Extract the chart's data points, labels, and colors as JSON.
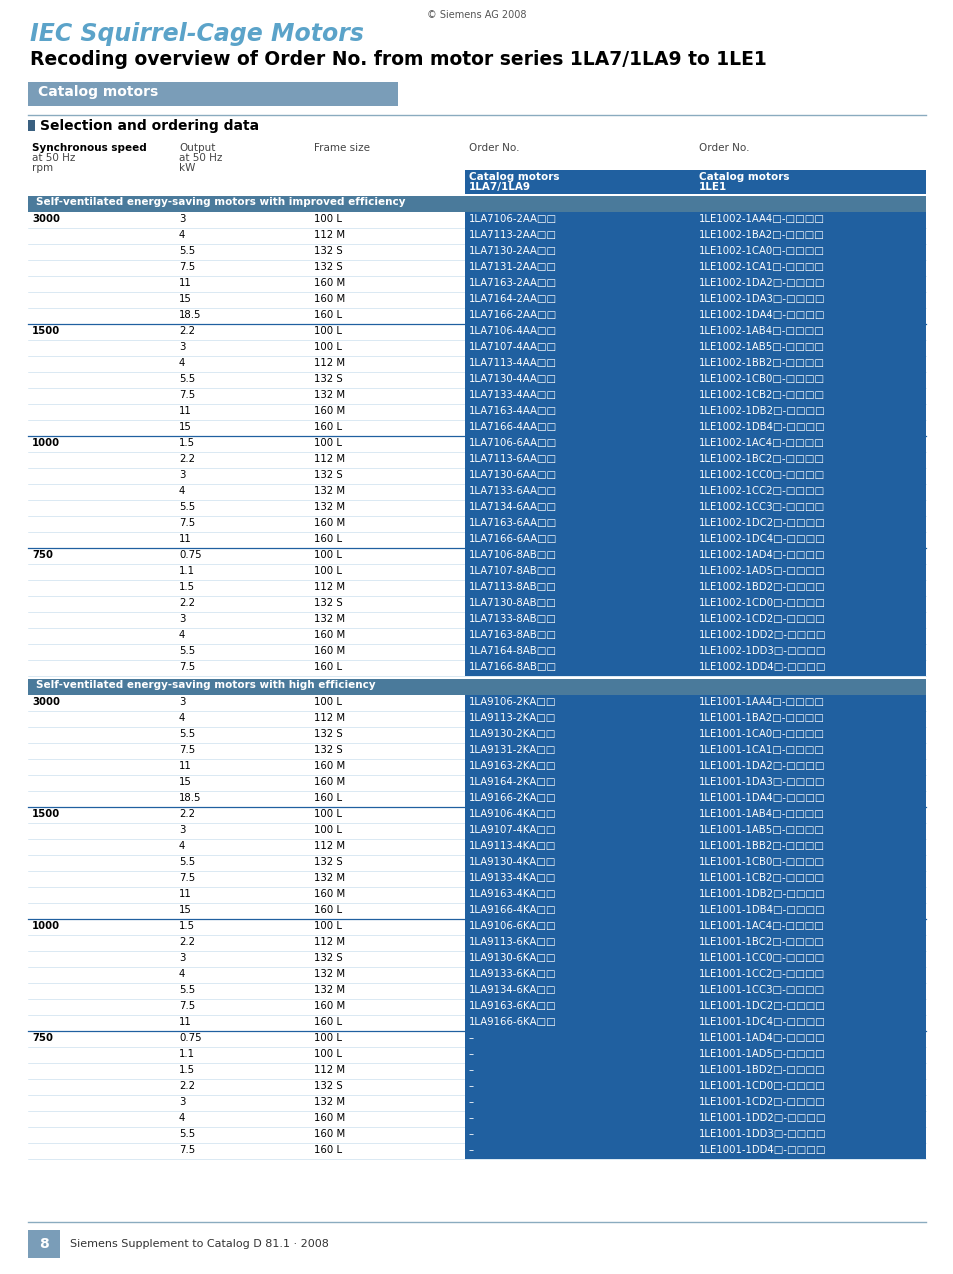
{
  "copyright": "© Siemens AG 2008",
  "title_blue": "IEC Squirrel-Cage Motors",
  "title_black": "Recoding overview of Order No. from motor series 1LA7/1LA9 to 1LE1",
  "section_label": "Catalog motors",
  "section1_label": "Self-ventilated energy-saving motors with improved efficiency",
  "section2_label": "Self-ventilated energy-saving motors with high efficiency",
  "blue_title_color": "#5ba3c9",
  "blue_header_color": "#2060a0",
  "section_bg_color": "#7a9db8",
  "white": "#ffffff",
  "black": "#000000",
  "rows_section1": [
    [
      "3000",
      "3",
      "100 L",
      "1LA7106-2AA□□",
      "1LE1002-1AA4□-□□□□"
    ],
    [
      "",
      "4",
      "112 M",
      "1LA7113-2AA□□",
      "1LE1002-1BA2□-□□□□"
    ],
    [
      "",
      "5.5",
      "132 S",
      "1LA7130-2AA□□",
      "1LE1002-1CA0□-□□□□"
    ],
    [
      "",
      "7.5",
      "132 S",
      "1LA7131-2AA□□",
      "1LE1002-1CA1□-□□□□"
    ],
    [
      "",
      "11",
      "160 M",
      "1LA7163-2AA□□",
      "1LE1002-1DA2□-□□□□"
    ],
    [
      "",
      "15",
      "160 M",
      "1LA7164-2AA□□",
      "1LE1002-1DA3□-□□□□"
    ],
    [
      "",
      "18.5",
      "160 L",
      "1LA7166-2AA□□",
      "1LE1002-1DA4□-□□□□"
    ],
    [
      "1500",
      "2.2",
      "100 L",
      "1LA7106-4AA□□",
      "1LE1002-1AB4□-□□□□"
    ],
    [
      "",
      "3",
      "100 L",
      "1LA7107-4AA□□",
      "1LE1002-1AB5□-□□□□"
    ],
    [
      "",
      "4",
      "112 M",
      "1LA7113-4AA□□",
      "1LE1002-1BB2□-□□□□"
    ],
    [
      "",
      "5.5",
      "132 S",
      "1LA7130-4AA□□",
      "1LE1002-1CB0□-□□□□"
    ],
    [
      "",
      "7.5",
      "132 M",
      "1LA7133-4AA□□",
      "1LE1002-1CB2□-□□□□"
    ],
    [
      "",
      "11",
      "160 M",
      "1LA7163-4AA□□",
      "1LE1002-1DB2□-□□□□"
    ],
    [
      "",
      "15",
      "160 L",
      "1LA7166-4AA□□",
      "1LE1002-1DB4□-□□□□"
    ],
    [
      "1000",
      "1.5",
      "100 L",
      "1LA7106-6AA□□",
      "1LE1002-1AC4□-□□□□"
    ],
    [
      "",
      "2.2",
      "112 M",
      "1LA7113-6AA□□",
      "1LE1002-1BC2□-□□□□"
    ],
    [
      "",
      "3",
      "132 S",
      "1LA7130-6AA□□",
      "1LE1002-1CC0□-□□□□"
    ],
    [
      "",
      "4",
      "132 M",
      "1LA7133-6AA□□",
      "1LE1002-1CC2□-□□□□"
    ],
    [
      "",
      "5.5",
      "132 M",
      "1LA7134-6AA□□",
      "1LE1002-1CC3□-□□□□"
    ],
    [
      "",
      "7.5",
      "160 M",
      "1LA7163-6AA□□",
      "1LE1002-1DC2□-□□□□"
    ],
    [
      "",
      "11",
      "160 L",
      "1LA7166-6AA□□",
      "1LE1002-1DC4□-□□□□"
    ],
    [
      "750",
      "0.75",
      "100 L",
      "1LA7106-8AB□□",
      "1LE1002-1AD4□-□□□□"
    ],
    [
      "",
      "1.1",
      "100 L",
      "1LA7107-8AB□□",
      "1LE1002-1AD5□-□□□□"
    ],
    [
      "",
      "1.5",
      "112 M",
      "1LA7113-8AB□□",
      "1LE1002-1BD2□-□□□□"
    ],
    [
      "",
      "2.2",
      "132 S",
      "1LA7130-8AB□□",
      "1LE1002-1CD0□-□□□□"
    ],
    [
      "",
      "3",
      "132 M",
      "1LA7133-8AB□□",
      "1LE1002-1CD2□-□□□□"
    ],
    [
      "",
      "4",
      "160 M",
      "1LA7163-8AB□□",
      "1LE1002-1DD2□-□□□□"
    ],
    [
      "",
      "5.5",
      "160 M",
      "1LA7164-8AB□□",
      "1LE1002-1DD3□-□□□□"
    ],
    [
      "",
      "7.5",
      "160 L",
      "1LA7166-8AB□□",
      "1LE1002-1DD4□-□□□□"
    ]
  ],
  "rows_section2": [
    [
      "3000",
      "3",
      "100 L",
      "1LA9106-2KA□□",
      "1LE1001-1AA4□-□□□□"
    ],
    [
      "",
      "4",
      "112 M",
      "1LA9113-2KA□□",
      "1LE1001-1BA2□-□□□□"
    ],
    [
      "",
      "5.5",
      "132 S",
      "1LA9130-2KA□□",
      "1LE1001-1CA0□-□□□□"
    ],
    [
      "",
      "7.5",
      "132 S",
      "1LA9131-2KA□□",
      "1LE1001-1CA1□-□□□□"
    ],
    [
      "",
      "11",
      "160 M",
      "1LA9163-2KA□□",
      "1LE1001-1DA2□-□□□□"
    ],
    [
      "",
      "15",
      "160 M",
      "1LA9164-2KA□□",
      "1LE1001-1DA3□-□□□□"
    ],
    [
      "",
      "18.5",
      "160 L",
      "1LA9166-2KA□□",
      "1LE1001-1DA4□-□□□□"
    ],
    [
      "1500",
      "2.2",
      "100 L",
      "1LA9106-4KA□□",
      "1LE1001-1AB4□-□□□□"
    ],
    [
      "",
      "3",
      "100 L",
      "1LA9107-4KA□□",
      "1LE1001-1AB5□-□□□□"
    ],
    [
      "",
      "4",
      "112 M",
      "1LA9113-4KA□□",
      "1LE1001-1BB2□-□□□□"
    ],
    [
      "",
      "5.5",
      "132 S",
      "1LA9130-4KA□□",
      "1LE1001-1CB0□-□□□□"
    ],
    [
      "",
      "7.5",
      "132 M",
      "1LA9133-4KA□□",
      "1LE1001-1CB2□-□□□□"
    ],
    [
      "",
      "11",
      "160 M",
      "1LA9163-4KA□□",
      "1LE1001-1DB2□-□□□□"
    ],
    [
      "",
      "15",
      "160 L",
      "1LA9166-4KA□□",
      "1LE1001-1DB4□-□□□□"
    ],
    [
      "1000",
      "1.5",
      "100 L",
      "1LA9106-6KA□□",
      "1LE1001-1AC4□-□□□□"
    ],
    [
      "",
      "2.2",
      "112 M",
      "1LA9113-6KA□□",
      "1LE1001-1BC2□-□□□□"
    ],
    [
      "",
      "3",
      "132 S",
      "1LA9130-6KA□□",
      "1LE1001-1CC0□-□□□□"
    ],
    [
      "",
      "4",
      "132 M",
      "1LA9133-6KA□□",
      "1LE1001-1CC2□-□□□□"
    ],
    [
      "",
      "5.5",
      "132 M",
      "1LA9134-6KA□□",
      "1LE1001-1CC3□-□□□□"
    ],
    [
      "",
      "7.5",
      "160 M",
      "1LA9163-6KA□□",
      "1LE1001-1DC2□-□□□□"
    ],
    [
      "",
      "11",
      "160 L",
      "1LA9166-6KA□□",
      "1LE1001-1DC4□-□□□□"
    ],
    [
      "750",
      "0.75",
      "100 L",
      "–",
      "1LE1001-1AD4□-□□□□"
    ],
    [
      "",
      "1.1",
      "100 L",
      "–",
      "1LE1001-1AD5□-□□□□"
    ],
    [
      "",
      "1.5",
      "112 M",
      "–",
      "1LE1001-1BD2□-□□□□"
    ],
    [
      "",
      "2.2",
      "132 S",
      "–",
      "1LE1001-1CD0□-□□□□"
    ],
    [
      "",
      "3",
      "132 M",
      "–",
      "1LE1001-1CD2□-□□□□"
    ],
    [
      "",
      "4",
      "160 M",
      "–",
      "1LE1001-1DD2□-□□□□"
    ],
    [
      "",
      "5.5",
      "160 M",
      "–",
      "1LE1001-1DD3□-□□□□"
    ],
    [
      "",
      "7.5",
      "160 L",
      "–",
      "1LE1001-1DD4□-□□□□"
    ]
  ]
}
